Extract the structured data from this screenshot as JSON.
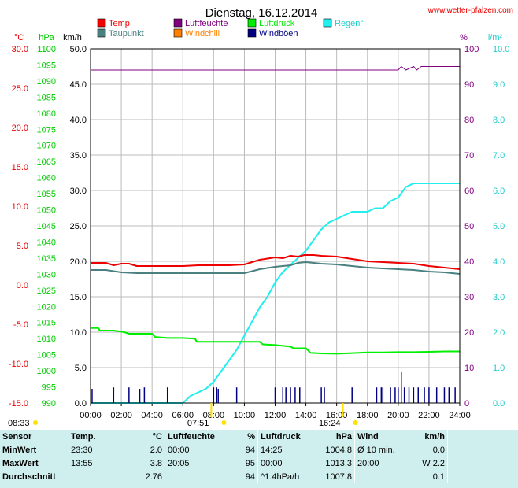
{
  "title": "Dienstag, 16.12.2014",
  "brand": "www.wetter-pfalzen.com",
  "colors": {
    "temp": "#ee0000",
    "taupunkt": "#4a8080",
    "luftfeuchte": "#800080",
    "windchill": "#ff8000",
    "luftdruck": "#00ee00",
    "windboeen": "#000080",
    "regen": "#22eeee",
    "left_temp": "#ee0000",
    "left_hpa": "#00cc00",
    "left_kmh": "#000000",
    "right_pct": "#800080",
    "right_rain": "#22cccc"
  },
  "legend": [
    {
      "key": "temp",
      "label": "Temp."
    },
    {
      "key": "luftfeuchte",
      "label": "Luftfeuchte"
    },
    {
      "key": "luftdruck",
      "label": "Luftdruck"
    },
    {
      "key": "regen",
      "label": "Regen°"
    },
    {
      "key": "taupunkt",
      "label": "Taupunkt"
    },
    {
      "key": "windchill",
      "label": "Windchill"
    },
    {
      "key": "windboeen",
      "label": "Windböen"
    }
  ],
  "axis_units": {
    "temp": "°C",
    "hpa": "hPa",
    "kmh": "km/h",
    "pct": "%",
    "rain": "l/m²"
  },
  "axis_ticks": {
    "temp": [
      "30.0",
      "25.0",
      "20.0",
      "15.0",
      "10.0",
      "5.0",
      "0.0",
      "-5.0",
      "-10.0",
      "-15.0"
    ],
    "hpa": [
      "1100",
      "1095",
      "1090",
      "1085",
      "1080",
      "1075",
      "1070",
      "1065",
      "1060",
      "1055",
      "1050",
      "1045",
      "1040",
      "1035",
      "1030",
      "1025",
      "1020",
      "1015",
      "1010",
      "1005",
      "1000",
      "995",
      "990"
    ],
    "kmh": [
      "50.0",
      "45.0",
      "40.0",
      "35.0",
      "30.0",
      "25.0",
      "20.0",
      "15.0",
      "10.0",
      "5.0",
      "0.0"
    ],
    "pct": [
      "100",
      "90",
      "80",
      "70",
      "60",
      "50",
      "40",
      "30",
      "20",
      "10",
      "0"
    ],
    "rain": [
      "10.0",
      "9.0",
      "8.0",
      "7.0",
      "6.0",
      "5.0",
      "4.0",
      "3.0",
      "2.0",
      "1.0",
      "0.0"
    ],
    "x": [
      "00:00",
      "02:00",
      "04:00",
      "06:00",
      "08:00",
      "10:00",
      "12:00",
      "14:00",
      "16:00",
      "18:00",
      "20:00",
      "22:00",
      "24:00"
    ]
  },
  "sun": {
    "sunrise_prev": "08:33",
    "sunrise": "07:51",
    "sunset": "16:24"
  },
  "chart_data": {
    "type": "line",
    "x_unit": "hour",
    "xlim": [
      0,
      24
    ],
    "series": [
      {
        "name": "Temp.",
        "axis": "temp",
        "ylim": [
          -15,
          30
        ],
        "x": [
          0,
          1,
          1.5,
          2,
          2.5,
          3,
          4,
          5,
          6,
          7,
          8,
          9,
          10,
          11,
          12,
          12.5,
          13,
          13.5,
          13.9,
          14.5,
          15,
          16,
          17,
          18,
          19,
          20,
          21,
          22,
          23,
          24
        ],
        "y": [
          2.8,
          2.8,
          2.5,
          2.7,
          2.7,
          2.4,
          2.4,
          2.4,
          2.4,
          2.5,
          2.5,
          2.5,
          2.6,
          3.2,
          3.5,
          3.4,
          3.7,
          3.6,
          3.8,
          3.8,
          3.7,
          3.6,
          3.3,
          3.0,
          2.9,
          2.8,
          2.7,
          2.4,
          2.2,
          2.0
        ]
      },
      {
        "name": "Taupunkt",
        "axis": "temp",
        "ylim": [
          -15,
          30
        ],
        "x": [
          0,
          1,
          2,
          3,
          4,
          5,
          6,
          7,
          8,
          9,
          10,
          11,
          12,
          13,
          13.5,
          14,
          14.5,
          15,
          16,
          17,
          18,
          19,
          20,
          21,
          22,
          23,
          24
        ],
        "y": [
          1.9,
          1.9,
          1.6,
          1.5,
          1.5,
          1.5,
          1.5,
          1.5,
          1.5,
          1.5,
          1.5,
          2.0,
          2.3,
          2.5,
          2.8,
          2.9,
          2.8,
          2.7,
          2.6,
          2.4,
          2.2,
          2.1,
          2.0,
          1.9,
          1.7,
          1.6,
          1.4
        ]
      },
      {
        "name": "Luftfeuchte",
        "axis": "pct",
        "ylim": [
          0,
          100
        ],
        "x": [
          0,
          19.9,
          20,
          20.2,
          20.5,
          21,
          21.2,
          21.5,
          22,
          22.5,
          24
        ],
        "y": [
          94,
          94,
          94,
          95,
          94,
          95,
          94,
          95,
          95,
          95,
          95
        ]
      },
      {
        "name": "Luftdruck",
        "axis": "hpa",
        "ylim": [
          990,
          1100
        ],
        "x": [
          0,
          0.5,
          0.6,
          1.5,
          2.2,
          2.5,
          3,
          3.5,
          4,
          4.2,
          5,
          6,
          6.8,
          6.9,
          8,
          9,
          10,
          11,
          11.2,
          12,
          13,
          13.2,
          14,
          14.3,
          15,
          16,
          17,
          18,
          19,
          20,
          21,
          22,
          23,
          23.5,
          24
        ],
        "y": [
          1013.3,
          1013.3,
          1012.5,
          1012.5,
          1012.0,
          1011.5,
          1011.5,
          1011.5,
          1011.5,
          1010.5,
          1010.2,
          1010.2,
          1010.0,
          1009.0,
          1009.0,
          1009.0,
          1009.0,
          1009.0,
          1008.2,
          1008.0,
          1007.5,
          1007.0,
          1007.0,
          1005.6,
          1005.4,
          1005.3,
          1005.5,
          1005.7,
          1005.7,
          1005.8,
          1005.8,
          1005.9,
          1006.0,
          1006.0,
          1006.0
        ]
      },
      {
        "name": "Windböen",
        "axis": "kmh",
        "ylim": [
          0,
          50
        ],
        "style": "bars",
        "x": [
          0.1,
          1.5,
          2.5,
          3.2,
          3.5,
          5,
          8,
          8.2,
          8.3,
          9.5,
          12,
          12.5,
          12.7,
          13,
          13.3,
          13.6,
          15,
          15.2,
          17,
          18.6,
          18.9,
          19,
          19.5,
          19.8,
          20,
          20.2,
          20.4,
          20.7,
          21,
          21.3,
          21.7,
          22,
          22.5,
          23,
          23.3,
          23.7
        ],
        "y": [
          2,
          2.2,
          2.2,
          2,
          2.2,
          2.2,
          2.2,
          2.2,
          2,
          2.2,
          2.2,
          2.2,
          2.2,
          2.2,
          2.2,
          2.2,
          2.2,
          2.2,
          2.2,
          2.2,
          2.2,
          2.2,
          2.2,
          2.2,
          2.2,
          4.4,
          2.2,
          2.2,
          2.2,
          2.2,
          2.2,
          2.2,
          2.2,
          2.2,
          2.2,
          2.2
        ]
      },
      {
        "name": "Regen°",
        "axis": "rain",
        "ylim": [
          0,
          10
        ],
        "x": [
          0,
          5.9,
          6,
          6.5,
          7,
          7.5,
          8,
          8.5,
          9,
          9.5,
          10,
          10.5,
          11,
          11.5,
          12,
          12.5,
          13,
          13.5,
          14,
          14.5,
          15,
          15.5,
          16,
          16.5,
          17,
          17.5,
          18,
          18.5,
          19,
          19.5,
          20,
          20.5,
          21,
          22,
          23,
          24
        ],
        "y": [
          0,
          0,
          0,
          0.2,
          0.3,
          0.4,
          0.6,
          0.9,
          1.2,
          1.5,
          1.9,
          2.3,
          2.7,
          3.0,
          3.4,
          3.7,
          3.9,
          4.1,
          4.3,
          4.6,
          4.9,
          5.1,
          5.2,
          5.3,
          5.4,
          5.4,
          5.4,
          5.5,
          5.5,
          5.7,
          5.8,
          6.1,
          6.2,
          6.2,
          6.2,
          6.2
        ]
      }
    ]
  },
  "stats": {
    "headers": {
      "sensor": "Sensor",
      "temp": "Temp.",
      "temp_unit": "°C",
      "feuchte": "Luftfeuchte",
      "feuchte_unit": "%",
      "druck": "Luftdruck",
      "druck_unit": "hPa",
      "wind": "Wind",
      "wind_unit": "km/h"
    },
    "rows": [
      {
        "label": "MinWert",
        "t_time": "23:30",
        "t_val": "2.0",
        "f_time": "00:00",
        "f_val": "94",
        "d_time": "14:25",
        "d_val": "1004.8",
        "w_time": "Ø 10 min.",
        "w_val": "0.0"
      },
      {
        "label": "MaxWert",
        "t_time": "13:55",
        "t_val": "3.8",
        "f_time": "20:05",
        "f_val": "95",
        "d_time": "00:00",
        "d_val": "1013.3",
        "w_time": "20:00",
        "w_val": "W 2.2"
      },
      {
        "label": "Durchschnitt",
        "t_time": "",
        "t_val": "2.76",
        "f_time": "",
        "f_val": "94",
        "d_time": "^1.4hPa/h",
        "d_val": "1007.8",
        "w_time": "",
        "w_val": "0.1"
      }
    ]
  }
}
